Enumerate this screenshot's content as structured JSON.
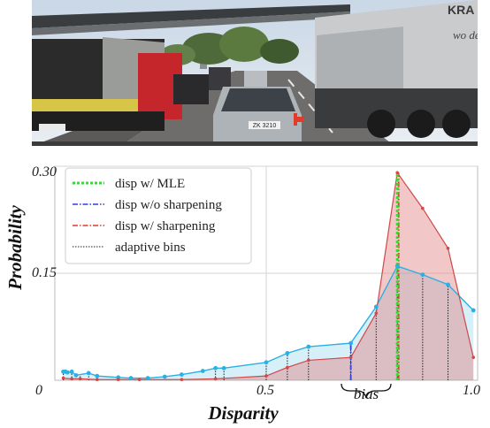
{
  "photo": {
    "plate_text": "ZK 3210",
    "truck_text_1": "KRA",
    "truck_text_2": "wo de"
  },
  "chart_data": {
    "type": "line",
    "xlabel": "Disparity",
    "ylabel": "Probability",
    "xlim": [
      0,
      1.0
    ],
    "ylim": [
      0,
      0.3
    ],
    "x_ticks": [
      "0",
      "0.5",
      "1.0"
    ],
    "y_ticks": [
      "0.15",
      "0.30"
    ],
    "grid": true,
    "legend_position": "top-left",
    "legend": [
      "disp w/ MLE",
      "disp w/o sharpening",
      "disp w/ sharpening",
      "adaptive bins"
    ],
    "annotation": "bias",
    "series": [
      {
        "name": "disp w/o sharpening",
        "color": "#2ab0e4",
        "x": [
          0.02,
          0.025,
          0.03,
          0.04,
          0.05,
          0.08,
          0.1,
          0.15,
          0.18,
          0.22,
          0.26,
          0.3,
          0.35,
          0.38,
          0.4,
          0.5,
          0.55,
          0.6,
          0.7,
          0.76,
          0.81,
          0.87,
          0.93,
          0.99
        ],
        "values": [
          0.012,
          0.012,
          0.011,
          0.012,
          0.007,
          0.01,
          0.006,
          0.004,
          0.003,
          0.003,
          0.005,
          0.008,
          0.013,
          0.017,
          0.017,
          0.025,
          0.038,
          0.047,
          0.052,
          0.103,
          0.16,
          0.148,
          0.134,
          0.098
        ]
      },
      {
        "name": "disp w/ sharpening",
        "color": "#d04848",
        "x": [
          0.02,
          0.04,
          0.06,
          0.1,
          0.15,
          0.2,
          0.3,
          0.38,
          0.5,
          0.55,
          0.6,
          0.7,
          0.76,
          0.81,
          0.87,
          0.93,
          0.99
        ],
        "values": [
          0.003,
          0.002,
          0.002,
          0.001,
          0.001,
          0.001,
          0.001,
          0.002,
          0.006,
          0.018,
          0.028,
          0.032,
          0.094,
          0.291,
          0.241,
          0.185,
          0.032
        ]
      }
    ],
    "adaptive_bins_x": [
      0.02,
      0.04,
      0.06,
      0.08,
      0.1,
      0.38,
      0.4,
      0.5,
      0.55,
      0.6,
      0.7,
      0.76,
      0.81,
      0.87,
      0.93
    ],
    "mle_x": 0.81,
    "sharpened_x": 0.81,
    "unsharpened_x": 0.7
  }
}
